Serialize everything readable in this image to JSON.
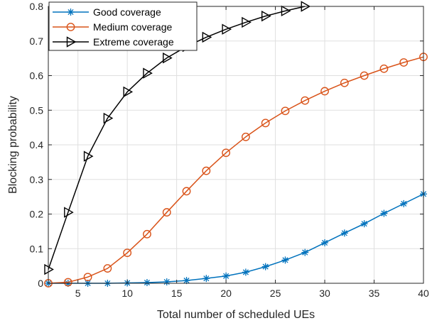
{
  "chart_data": {
    "type": "line",
    "xlabel": "Total number of scheduled UEs",
    "ylabel": "Blocking probability",
    "xlim": [
      2,
      40
    ],
    "ylim": [
      0,
      0.8
    ],
    "xticks": [
      5,
      10,
      15,
      20,
      25,
      30,
      35,
      40
    ],
    "yticks": [
      0,
      0.1,
      0.2,
      0.3,
      0.4,
      0.5,
      0.6,
      0.7,
      0.8
    ],
    "grid": true,
    "legend_position": "top-left",
    "series": [
      {
        "name": "Good coverage",
        "color": "#0072BD",
        "marker": "asterisk",
        "x": [
          2,
          4,
          6,
          8,
          10,
          12,
          14,
          16,
          18,
          20,
          22,
          24,
          26,
          28,
          30,
          32,
          34,
          36,
          38,
          40
        ],
        "y": [
          0.0,
          0.0,
          0.0,
          0.0,
          0.001,
          0.002,
          0.004,
          0.008,
          0.014,
          0.021,
          0.032,
          0.048,
          0.067,
          0.089,
          0.117,
          0.145,
          0.172,
          0.202,
          0.23,
          0.258
        ]
      },
      {
        "name": "Medium coverage",
        "color": "#D95319",
        "marker": "circle",
        "x": [
          2,
          4,
          6,
          8,
          10,
          12,
          14,
          16,
          18,
          20,
          22,
          24,
          26,
          28,
          30,
          32,
          34,
          36,
          38,
          40
        ],
        "y": [
          0.0,
          0.003,
          0.018,
          0.043,
          0.088,
          0.142,
          0.205,
          0.266,
          0.325,
          0.377,
          0.423,
          0.463,
          0.498,
          0.528,
          0.555,
          0.579,
          0.6,
          0.62,
          0.638,
          0.654
        ]
      },
      {
        "name": "Extreme coverage",
        "color": "#000000",
        "marker": "triangle-right",
        "x": [
          2,
          4,
          6,
          8,
          10,
          12,
          14,
          16,
          18,
          20,
          22,
          24,
          26,
          28
        ],
        "y": [
          0.04,
          0.205,
          0.367,
          0.477,
          0.553,
          0.607,
          0.651,
          0.684,
          0.711,
          0.734,
          0.754,
          0.772,
          0.787,
          0.8
        ]
      }
    ]
  }
}
